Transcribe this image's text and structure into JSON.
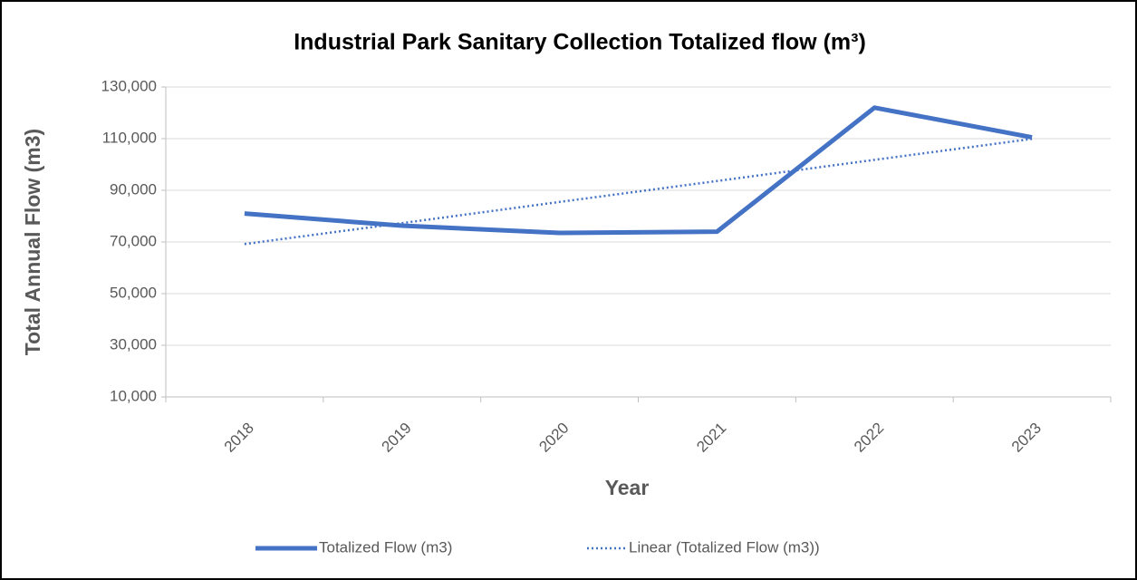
{
  "chart_data": {
    "type": "line",
    "title": "Industrial Park Sanitary Collection Totalized flow (m³)",
    "x_label": "Year",
    "y_label": "Total Annual Flow (m3)",
    "categories": [
      "2018",
      "2019",
      "2020",
      "2021",
      "2022",
      "2023"
    ],
    "series": [
      {
        "name": "Totalized Flow (m3)",
        "color": "#4472c4",
        "style": "solid",
        "values": [
          81000,
          76300,
          73500,
          74000,
          122000,
          110500
        ]
      },
      {
        "name": "Linear (Totalized Flow (m3))",
        "color": "#4472c4",
        "style": "dotted",
        "values": [
          69200,
          77300,
          85500,
          93600,
          101800,
          109900
        ]
      }
    ],
    "ylim": [
      10000,
      130000
    ],
    "yticks": [
      {
        "value": 10000,
        "label": "10,000"
      },
      {
        "value": 30000,
        "label": "30,000"
      },
      {
        "value": 50000,
        "label": "50,000"
      },
      {
        "value": 70000,
        "label": "70,000"
      },
      {
        "value": 90000,
        "label": "90,000"
      },
      {
        "value": 110000,
        "label": "110,000"
      },
      {
        "value": 130000,
        "label": "130,000"
      }
    ],
    "grid": true,
    "legend": "bottom"
  }
}
